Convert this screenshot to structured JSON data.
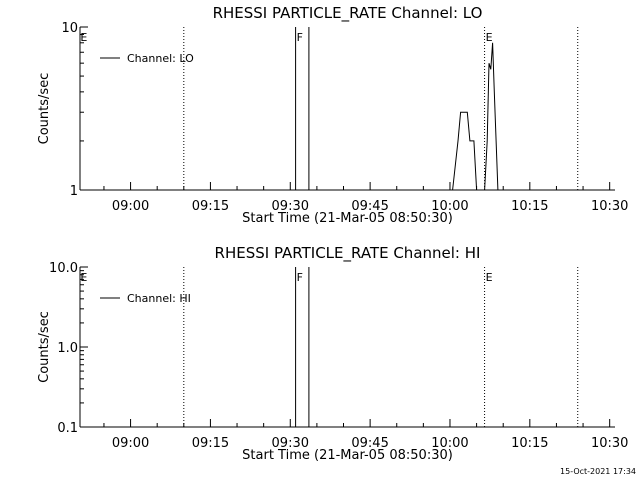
{
  "chart_data": [
    {
      "type": "line",
      "title": "RHESSI PARTICLE_RATE Channel: LO",
      "xlabel": "Start Time (21-Mar-05 08:50:30)",
      "ylabel": "Counts/sec",
      "y_scale": "log",
      "ylim": [
        1,
        10
      ],
      "y_ticks": [
        {
          "value": 1,
          "label": "1"
        },
        {
          "value": 10,
          "label": "10"
        }
      ],
      "xlim": [
        "08:50:30",
        "10:31:00"
      ],
      "x_ticks": [
        "09:00",
        "09:15",
        "09:30",
        "09:45",
        "10:00",
        "10:15",
        "10:30"
      ],
      "legend": "top-left",
      "series": [
        {
          "name": "Channel: LO",
          "points": [
            [
              "10:00:30",
              1
            ],
            [
              "10:01:30",
              2.0
            ],
            [
              "10:02:00",
              3.0
            ],
            [
              "10:03:15",
              3.0
            ],
            [
              "10:03:45",
              2.0
            ],
            [
              "10:04:30",
              2.0
            ],
            [
              "10:05:00",
              1
            ],
            [
              "10:05:30",
              null
            ],
            [
              "10:06:30",
              1
            ],
            [
              "10:07:00",
              2.0
            ],
            [
              "10:07:20",
              6.0
            ],
            [
              "10:07:40",
              5.5
            ],
            [
              "10:08:00",
              8.0
            ],
            [
              "10:08:20",
              4.0
            ],
            [
              "10:08:40",
              2.0
            ],
            [
              "10:09:00",
              1
            ]
          ]
        }
      ],
      "gaps": [
        {
          "start": "09:31:00",
          "end": "09:33:30",
          "label": "F"
        }
      ],
      "markers": [
        {
          "time": "08:51:30",
          "label": "E",
          "line": false
        },
        {
          "time": "09:10:00",
          "label": "",
          "line": true
        },
        {
          "time": "10:06:30",
          "label": "E",
          "line": true
        },
        {
          "time": "10:24:00",
          "label": "",
          "line": true
        }
      ]
    },
    {
      "type": "line",
      "title": "RHESSI PARTICLE_RATE Channel: HI",
      "xlabel": "Start Time (21-Mar-05 08:50:30)",
      "ylabel": "Counts/sec",
      "y_scale": "log",
      "ylim": [
        0.1,
        10
      ],
      "y_ticks": [
        {
          "value": 0.1,
          "label": "0.1"
        },
        {
          "value": 1,
          "label": "1.0"
        },
        {
          "value": 10,
          "label": "10.0"
        }
      ],
      "xlim": [
        "08:50:30",
        "10:31:00"
      ],
      "x_ticks": [
        "09:00",
        "09:15",
        "09:30",
        "09:45",
        "10:00",
        "10:15",
        "10:30"
      ],
      "legend": "top-left",
      "series": [
        {
          "name": "Channel: HI",
          "points": []
        }
      ],
      "gaps": [
        {
          "start": "09:31:00",
          "end": "09:33:30",
          "label": "F"
        }
      ],
      "markers": [
        {
          "time": "08:51:30",
          "label": "E",
          "line": false
        },
        {
          "time": "09:10:00",
          "label": "",
          "line": true
        },
        {
          "time": "10:06:30",
          "label": "E",
          "line": true
        },
        {
          "time": "10:24:00",
          "label": "",
          "line": true
        }
      ]
    }
  ],
  "timestamp": "15-Oct-2021 17:34"
}
